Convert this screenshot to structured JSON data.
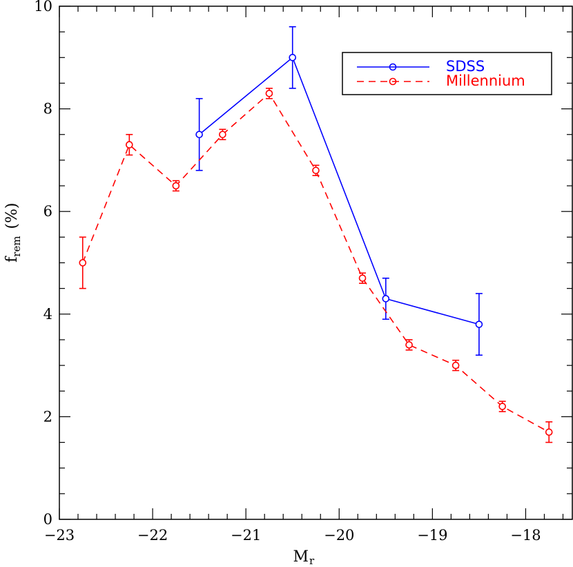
{
  "chart_data": {
    "type": "line",
    "title": "",
    "xlabel": "M",
    "xlabel_sub": "r",
    "ylabel": "f",
    "ylabel_sub": "rem",
    "ylabel_suffix": "(%)",
    "xlim": [
      -23,
      -17.5
    ],
    "ylim": [
      0,
      10
    ],
    "x_ticks": [
      -23,
      -22,
      -21,
      -20,
      -19,
      -18
    ],
    "x_tick_labels": [
      "−23",
      "−22",
      "−21",
      "−20",
      "−19",
      "−18"
    ],
    "y_ticks": [
      0,
      2,
      4,
      6,
      8,
      10
    ],
    "y_tick_labels": [
      "0",
      "2",
      "4",
      "6",
      "8",
      "10"
    ],
    "grid": false,
    "legend_position": "top-right",
    "series": [
      {
        "name": "SDSS",
        "color": "#0000ff",
        "line_style": "solid",
        "marker": "open-circle",
        "x": [
          -21.5,
          -20.5,
          -19.5,
          -18.5
        ],
        "y": [
          7.5,
          9.0,
          4.3,
          3.8
        ],
        "y_err": [
          0.7,
          0.6,
          0.4,
          0.6
        ]
      },
      {
        "name": "Millennium",
        "color": "#ff0000",
        "line_style": "dashed",
        "marker": "open-circle",
        "x": [
          -22.75,
          -22.25,
          -21.75,
          -21.25,
          -20.75,
          -20.25,
          -19.75,
          -19.25,
          -18.75,
          -18.25,
          -17.75
        ],
        "y": [
          5.0,
          7.3,
          6.5,
          7.5,
          8.3,
          6.8,
          4.7,
          3.4,
          3.0,
          2.2,
          1.7
        ],
        "y_err": [
          0.5,
          0.2,
          0.1,
          0.1,
          0.1,
          0.1,
          0.1,
          0.1,
          0.1,
          0.1,
          0.2
        ]
      }
    ]
  }
}
